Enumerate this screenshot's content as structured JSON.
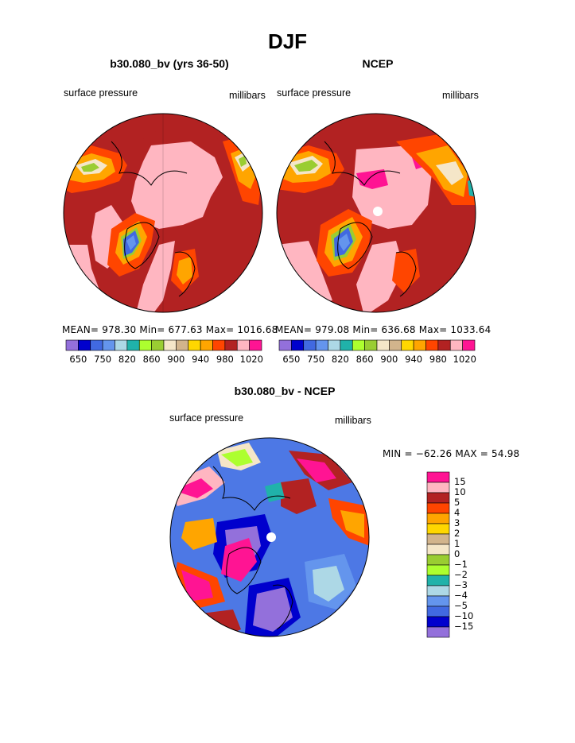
{
  "figure": {
    "title": "DJF",
    "left_panel": {
      "title": "b30.080_bv (yrs 36-50)",
      "left_label": "surface pressure",
      "right_label": "millibars",
      "stats": "MEAN= 978.30   Min= 677.63   Max= 1016.68"
    },
    "right_panel": {
      "title": "NCEP",
      "left_label": "surface pressure",
      "right_label": "millibars",
      "stats": "MEAN= 979.08   Min= 636.68   Max= 1033.64"
    },
    "diff_panel": {
      "title": "b30.080_bv - NCEP",
      "left_label": "surface pressure",
      "right_label": "millibars",
      "minmax": "MIN = −62.26  MAX =  54.98"
    },
    "top_colorbar": {
      "colors": [
        "#9370db",
        "#0000cd",
        "#4169e1",
        "#6495ed",
        "#add8e6",
        "#20b2aa",
        "#adff2f",
        "#9acd32",
        "#f5e6c8",
        "#d2b48c",
        "#ffd700",
        "#ffa500",
        "#ff4500",
        "#b22222",
        "#ffb6c1",
        "#ff1493"
      ],
      "tick_labels": [
        "650",
        "750",
        "820",
        "860",
        "900",
        "940",
        "980",
        "1020"
      ]
    },
    "diff_colorbar": {
      "colors": [
        "#9370db",
        "#0000cd",
        "#4169e1",
        "#6495ed",
        "#add8e6",
        "#20b2aa",
        "#adff2f",
        "#9acd32",
        "#f5e6c8",
        "#d2b48c",
        "#ffd700",
        "#ffa500",
        "#ff4500",
        "#b22222",
        "#ffb6c1",
        "#ff1493"
      ],
      "tick_labels": [
        "15",
        "10",
        "5",
        "4",
        "3",
        "2",
        "1",
        "0",
        "−1",
        "−2",
        "−3",
        "−4",
        "−5",
        "−10",
        "−15"
      ]
    }
  }
}
